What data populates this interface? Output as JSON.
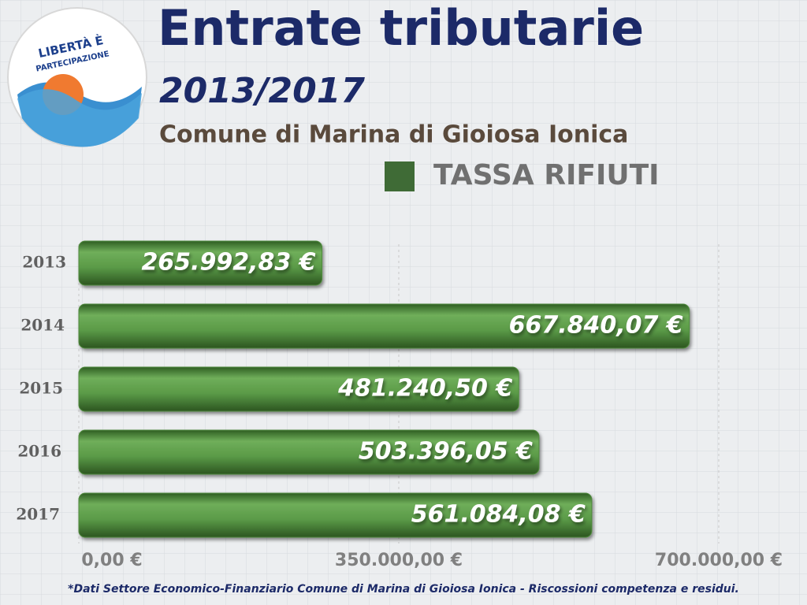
{
  "logo": {
    "lines": [
      "LIBERTÀ È",
      "PARTECIPAZIONE"
    ]
  },
  "chart_data": {
    "type": "bar",
    "orientation": "horizontal",
    "title": "Entrate tributarie",
    "period": "2013/2017",
    "subtitle": "Comune di Marina di Gioiosa Ionica",
    "note": "*Dati Settore Economico-Finanziario Comune di Marina di Gioiosa Ionica - Riscossioni competenza e residui.",
    "categories": [
      "2013",
      "2014",
      "2015",
      "2016",
      "2017"
    ],
    "series": [
      {
        "name": "TASSA RIFIUTI",
        "color": "#4f8a3c",
        "values": [
          265992.83,
          667840.07,
          481240.5,
          503396.05,
          561084.08
        ],
        "value_labels": [
          "265.992,83 €",
          "667.840,07 €",
          "481.240,50 €",
          "503.396,05 €",
          "561.084,08 €"
        ]
      }
    ],
    "xlim": [
      0,
      700000
    ],
    "xticks": [
      {
        "value": 0,
        "label": "0,00 €"
      },
      {
        "value": 350000,
        "label": "350.000,00 €"
      },
      {
        "value": 700000,
        "label": "700.000,00 €"
      }
    ],
    "grid": true
  }
}
